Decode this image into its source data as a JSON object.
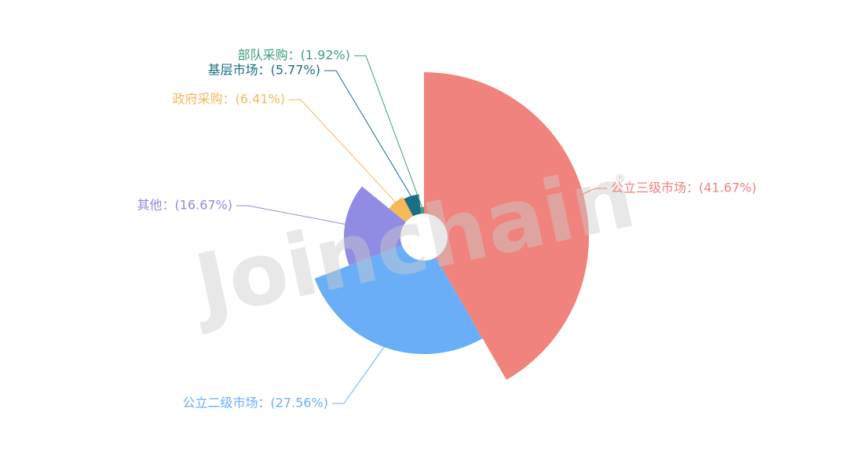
{
  "chart_data": {
    "type": "rose",
    "watermark": "Joinchain",
    "watermark_mark": "®",
    "labels": [
      "公立三级市场：(41.67%)",
      "公立二级市场：(27.56%)",
      "其他：(16.67%)",
      "政府采购：(6.41%)",
      "基层市场：(5.77%)",
      "部队采购：(1.92%)"
    ],
    "values": [
      41.67,
      27.56,
      16.67,
      6.41,
      5.77,
      1.92
    ],
    "colors": [
      "#f0837d",
      "#6aaef7",
      "#908be3",
      "#f5b95d",
      "#1c6e85",
      "#3ba07d"
    ]
  }
}
